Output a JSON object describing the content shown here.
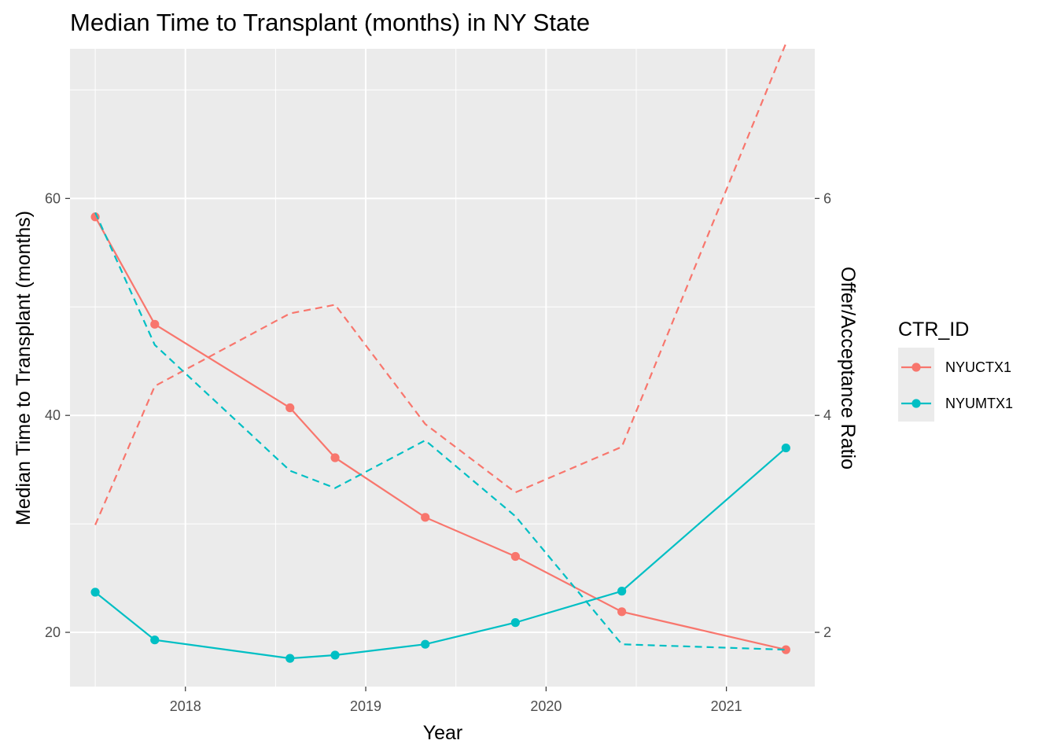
{
  "chart_data": {
    "type": "line",
    "title": "Median Time to Transplant (months) in NY State",
    "xlabel": "Year",
    "ylabel": "Median Time to Transplant (months)",
    "y2label": "Offer/Acceptance Ratio",
    "xlim": [
      2017.36,
      2021.49
    ],
    "ylim": [
      15.0,
      73.8
    ],
    "y2lim": [
      1.5,
      7.38
    ],
    "x_ticks": [
      2018,
      2019,
      2020,
      2021
    ],
    "y_ticks": [
      20,
      40,
      60
    ],
    "y2_ticks": [
      2,
      4,
      6
    ],
    "grid": true,
    "legend": {
      "title": "CTR_ID",
      "position": "right"
    },
    "series": [
      {
        "name": "NYUCTX1",
        "color": "#F8766D",
        "x": [
          2017.5,
          2017.83,
          2018.58,
          2018.83,
          2019.33,
          2019.83,
          2020.42,
          2021.33
        ],
        "time_to_transplant": [
          58.3,
          48.4,
          40.7,
          36.1,
          30.6,
          27.0,
          21.9,
          18.4
        ],
        "offer_acceptance_ratio": [
          2.99,
          4.27,
          4.94,
          5.02,
          3.92,
          3.29,
          3.71,
          7.43
        ]
      },
      {
        "name": "NYUMTX1",
        "color": "#00BFC4",
        "x": [
          2017.5,
          2017.83,
          2018.58,
          2018.83,
          2019.33,
          2019.83,
          2020.42,
          2021.33
        ],
        "time_to_transplant": [
          23.7,
          19.3,
          17.6,
          17.9,
          18.9,
          20.9,
          23.8,
          37.0
        ],
        "offer_acceptance_ratio": [
          5.87,
          4.65,
          3.49,
          3.33,
          3.77,
          3.07,
          1.89,
          1.84
        ]
      }
    ]
  }
}
